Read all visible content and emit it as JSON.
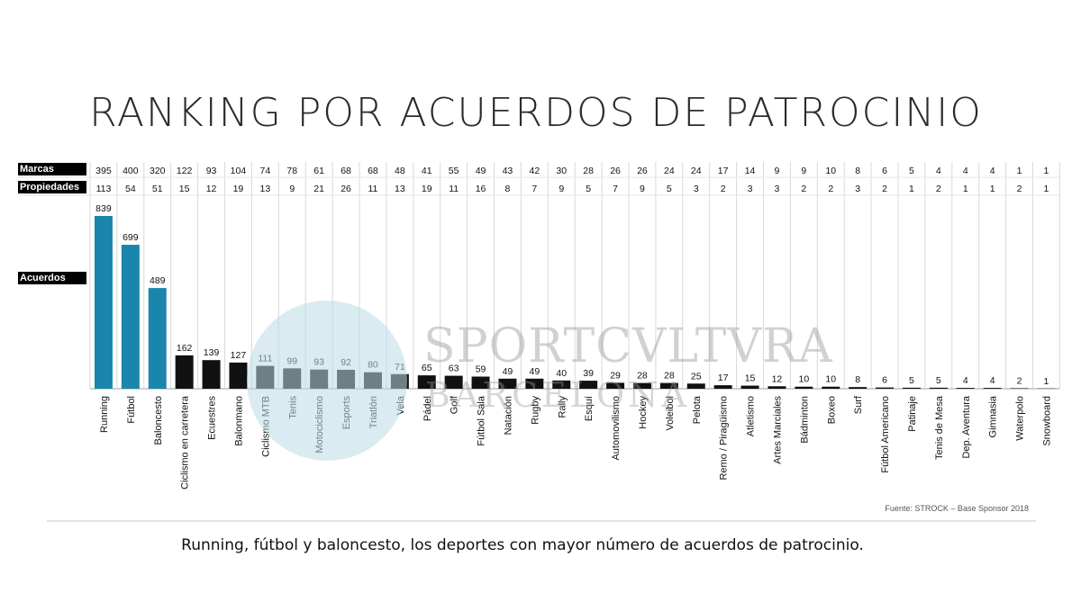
{
  "chart_data": {
    "type": "bar",
    "title": "RANKING POR ACUERDOS DE PATROCINIO",
    "categories": [
      "Running",
      "Fútbol",
      "Baloncesto",
      "Ciclismo en carretera",
      "Ecuestres",
      "Balonmano",
      "Ciclismo MTB",
      "Tenis",
      "Motociclismo",
      "Esports",
      "Triatlón",
      "Vela",
      "Pádel",
      "Golf",
      "Fútbol Sala",
      "Natación",
      "Rugby",
      "Rally",
      "Esquí",
      "Automovilismo",
      "Hockey",
      "Voleibol",
      "Pelota",
      "Remo / Piragüismo",
      "Atletismo",
      "Artes Marciales",
      "Bádminton",
      "Boxeo",
      "Surf",
      "Fútbol Americano",
      "Patinaje",
      "Tenis de Mesa",
      "Dep. Aventura",
      "Gimnasia",
      "Waterpolo",
      "Snowboard"
    ],
    "row_labels": {
      "marcas": "Marcas",
      "propiedades": "Propiedades",
      "acuerdos": "Acuerdos"
    },
    "marcas": [
      395,
      400,
      320,
      122,
      93,
      104,
      74,
      78,
      61,
      68,
      68,
      48,
      41,
      55,
      49,
      43,
      42,
      30,
      28,
      26,
      26,
      24,
      24,
      17,
      14,
      9,
      9,
      10,
      8,
      6,
      5,
      4,
      4,
      4,
      1,
      1
    ],
    "propiedades": [
      113,
      54,
      51,
      15,
      12,
      19,
      13,
      9,
      21,
      26,
      11,
      13,
      19,
      11,
      16,
      8,
      7,
      9,
      5,
      7,
      9,
      5,
      3,
      2,
      3,
      3,
      2,
      2,
      3,
      2,
      1,
      2,
      1,
      1,
      2,
      1
    ],
    "acuerdos": [
      839,
      699,
      489,
      162,
      139,
      127,
      111,
      99,
      93,
      92,
      80,
      71,
      65,
      63,
      59,
      49,
      49,
      40,
      39,
      29,
      28,
      28,
      25,
      17,
      15,
      12,
      10,
      10,
      8,
      6,
      5,
      5,
      4,
      4,
      2,
      1
    ],
    "ylim": [
      0,
      839
    ],
    "colors": {
      "top3": "#1a86ab",
      "rest": "#111111",
      "axis": "#cfcfcf",
      "grid": "#d9d9d9"
    },
    "grid": true
  },
  "source": "Fuente: STROCK – Base Sponsor 2018",
  "caption": "Running, fútbol y baloncesto, los deportes con mayor número de acuerdos de patrocinio.",
  "watermark": {
    "line1": "SPORTCVLTVRA",
    "line2": "BARCELONA",
    "circle_color": "#bcdbe8"
  }
}
